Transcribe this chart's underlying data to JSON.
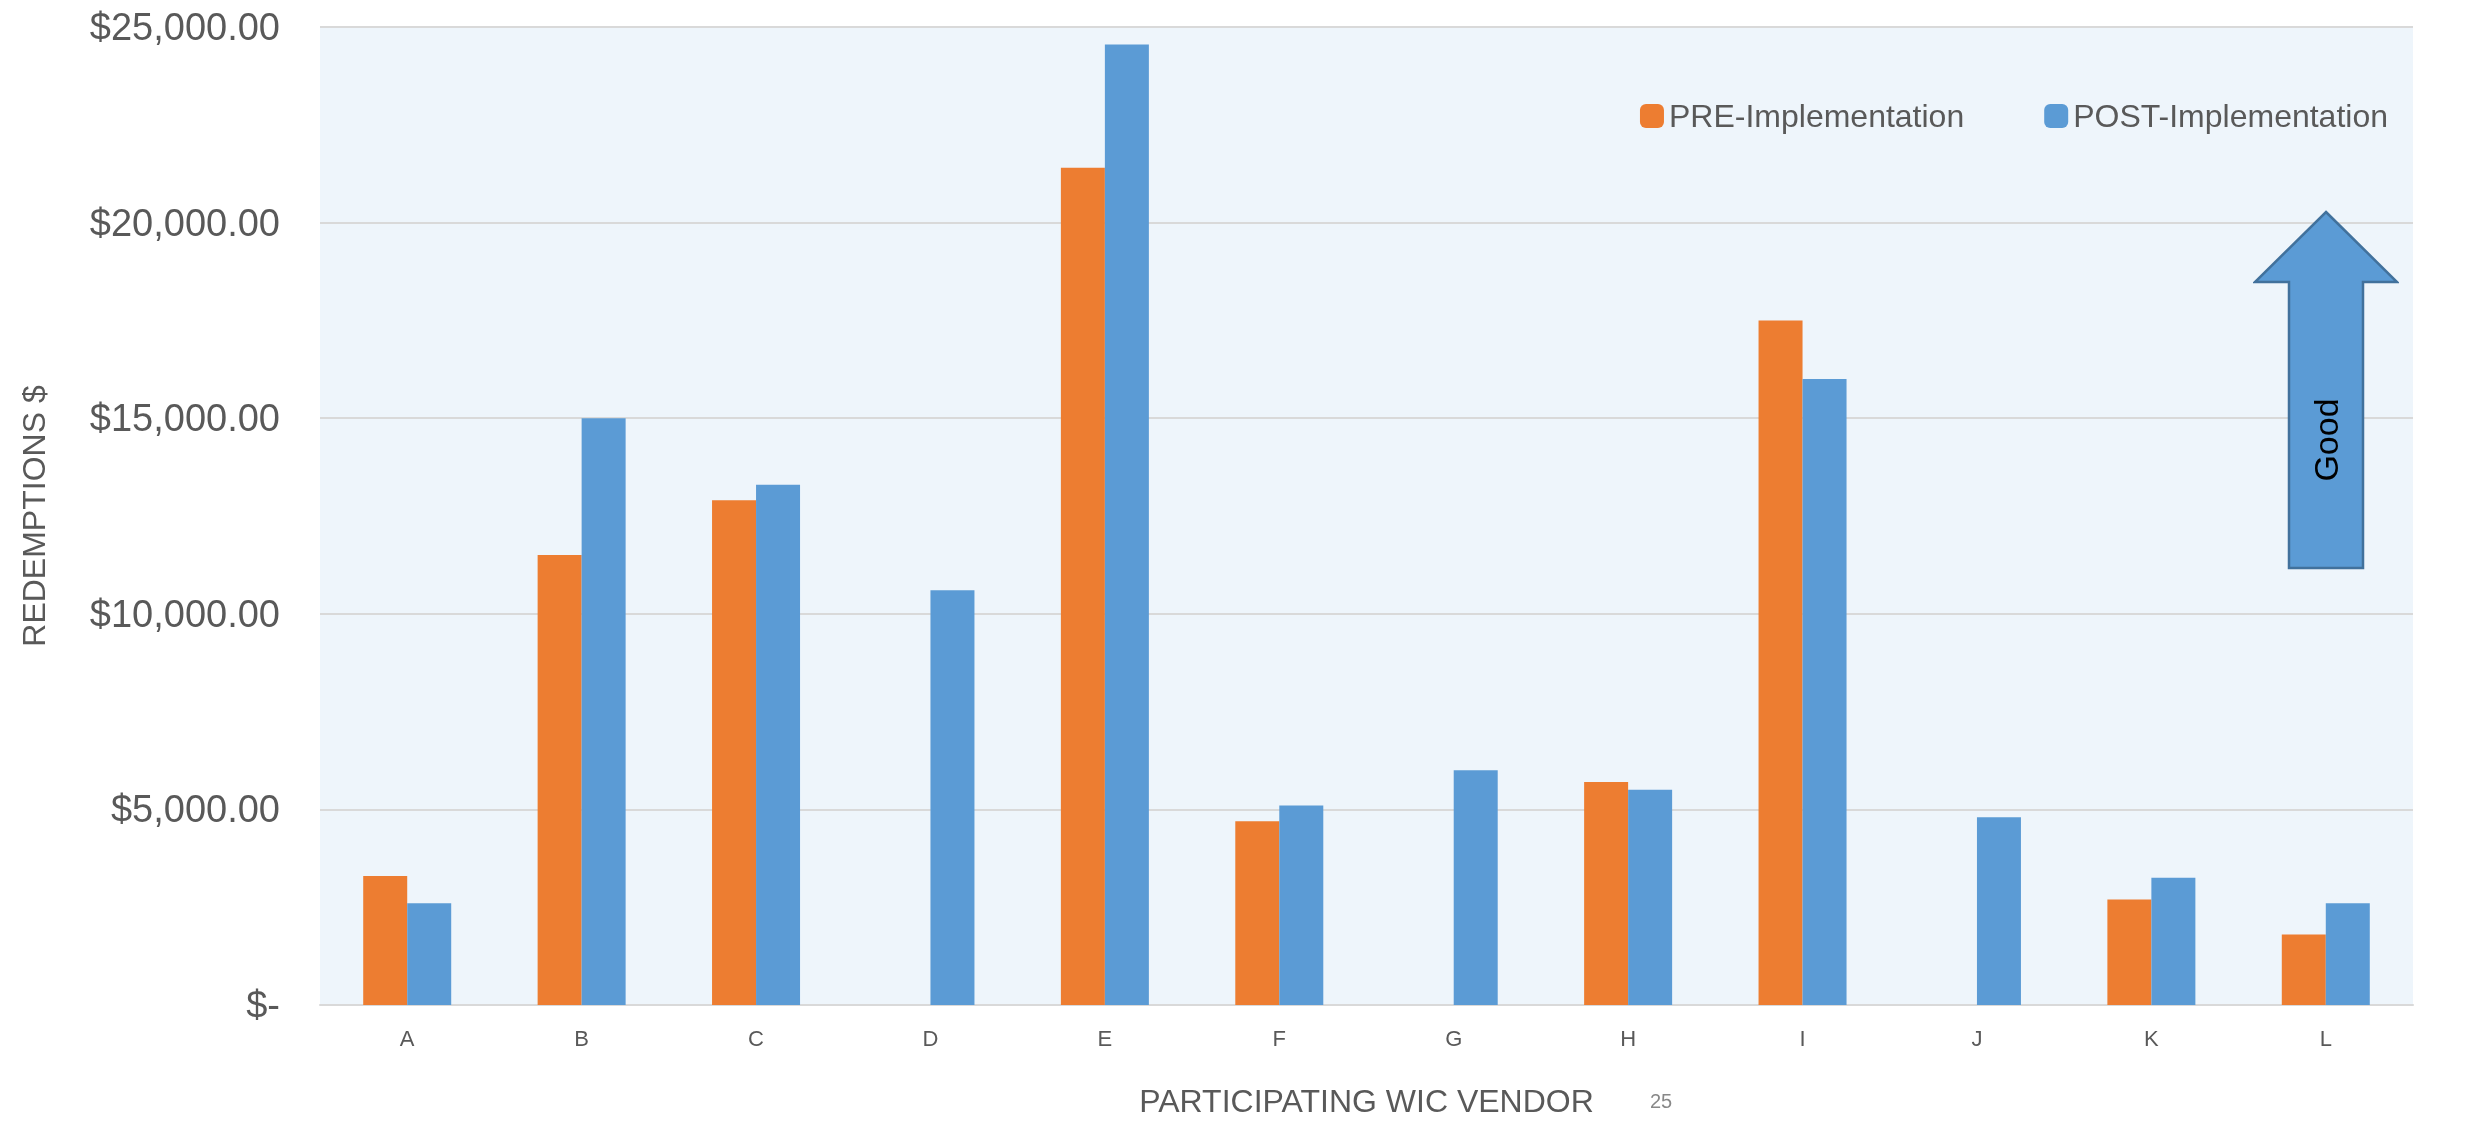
{
  "chart_data": {
    "type": "bar",
    "xlabel": "PARTICIPATING WIC VENDOR",
    "ylabel": "REDEMPTIONS $",
    "categories": [
      "A",
      "B",
      "C",
      "D",
      "E",
      "F",
      "G",
      "H",
      "I",
      "J",
      "K",
      "L"
    ],
    "series": [
      {
        "name": "PRE-Implementation",
        "color": "#ed7d31",
        "values": [
          3300,
          11500,
          12900,
          null,
          21400,
          4700,
          null,
          5700,
          17500,
          null,
          2700,
          1800
        ]
      },
      {
        "name": "POST-Implementation",
        "color": "#5b9bd5",
        "values": [
          2600,
          15000,
          13300,
          10600,
          24550,
          5100,
          6000,
          5500,
          16000,
          4800,
          3250,
          2600
        ]
      }
    ],
    "ylim": [
      0,
      25000
    ],
    "yticks": [
      {
        "value": 0,
        "label": "$-"
      },
      {
        "value": 5000,
        "label": "$5,000.00"
      },
      {
        "value": 10000,
        "label": "$10,000.00"
      },
      {
        "value": 15000,
        "label": "$15,000.00"
      },
      {
        "value": 20000,
        "label": "$20,000.00"
      },
      {
        "value": 25000,
        "label": "$25,000.00"
      }
    ],
    "grid": "y",
    "legend": "top right",
    "annotations": [
      "Good",
      "25"
    ]
  }
}
